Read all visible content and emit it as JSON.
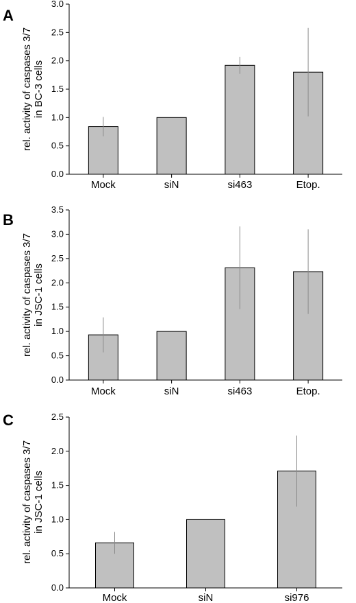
{
  "chart_data": [
    {
      "type": "bar",
      "panel": "A",
      "ylabel": [
        "rel. activity of caspases 3/7",
        "in BC-3 cells"
      ],
      "ylim": [
        0,
        3.0
      ],
      "yticks": [
        "0.0",
        "0.5",
        "1.0",
        "1.5",
        "2.0",
        "2.5",
        "3.0"
      ],
      "categories": [
        "Mock",
        "siN",
        "si463",
        "Etop."
      ],
      "values": [
        0.84,
        1.0,
        1.92,
        1.8
      ],
      "errors": [
        0.17,
        0.0,
        0.15,
        0.78
      ],
      "bar_color": "#c0c0c0",
      "grid": false,
      "legend": "none"
    },
    {
      "type": "bar",
      "panel": "B",
      "ylabel": [
        "rel. activity of caspases 3/7",
        "in JSC-1 cells"
      ],
      "ylim": [
        0,
        3.5
      ],
      "yticks": [
        "0.0",
        "0.5",
        "1.0",
        "1.5",
        "2.0",
        "2.5",
        "3.0",
        "3.5"
      ],
      "categories": [
        "Mock",
        "siN",
        "si463",
        "Etop."
      ],
      "values": [
        0.93,
        1.0,
        2.31,
        2.23
      ],
      "errors": [
        0.36,
        0.0,
        0.85,
        0.87
      ],
      "bar_color": "#c0c0c0",
      "grid": false,
      "legend": "none"
    },
    {
      "type": "bar",
      "panel": "C",
      "ylabel": [
        "rel. activity of caspases 3/7",
        "in JSC-1 cells"
      ],
      "ylim": [
        0,
        2.5
      ],
      "yticks": [
        "0.0",
        "0.5",
        "1.0",
        "1.5",
        "2.0",
        "2.5"
      ],
      "categories": [
        "Mock",
        "siN",
        "si976"
      ],
      "values": [
        0.66,
        1.0,
        1.71
      ],
      "errors": [
        0.16,
        0.0,
        0.52
      ],
      "bar_color": "#c0c0c0",
      "grid": false,
      "legend": "none"
    }
  ]
}
